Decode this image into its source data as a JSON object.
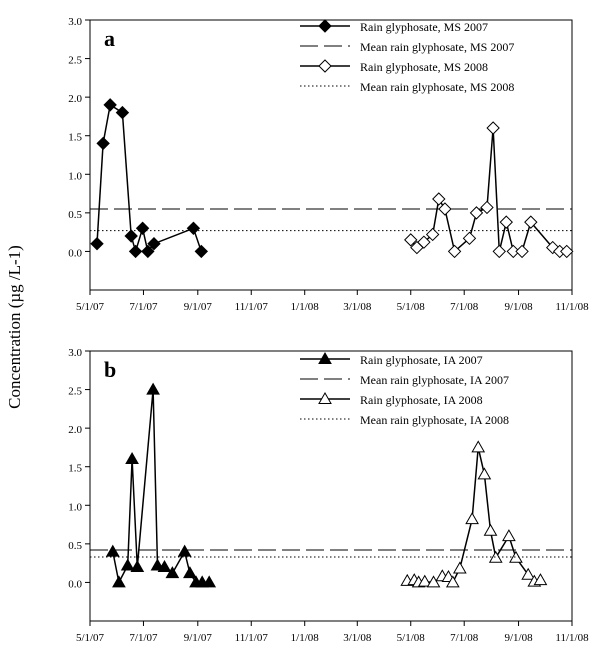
{
  "ylabel": "Concentration (µg /L-1)",
  "chart_data": [
    {
      "type": "line",
      "panel_label": "a",
      "xlabel": "",
      "ylabel": "Concentration (µg /L-1)",
      "ylim": [
        -0.5,
        3.0
      ],
      "yticks": [
        "0.0",
        "0.5",
        "1.0",
        "1.5",
        "2.0",
        "2.5",
        "3.0"
      ],
      "xlim": [
        "2007-05-01",
        "2008-11-01"
      ],
      "xticks": [
        "5/1/07",
        "7/1/07",
        "9/1/07",
        "11/1/07",
        "1/1/08",
        "3/1/08",
        "5/1/08",
        "7/1/08",
        "9/1/08",
        "11/1/08"
      ],
      "grid": false,
      "legend_position": "top-right",
      "series": [
        {
          "name": "Rain glyphosate, MS 2007",
          "style": "line-filled-diamond",
          "points": [
            [
              "2007-05-09",
              0.1
            ],
            [
              "2007-05-16",
              1.4
            ],
            [
              "2007-05-24",
              1.9
            ],
            [
              "2007-06-07",
              1.8
            ],
            [
              "2007-06-17",
              0.2
            ],
            [
              "2007-06-22",
              0.0
            ],
            [
              "2007-06-30",
              0.3
            ],
            [
              "2007-07-06",
              0.0
            ],
            [
              "2007-07-13",
              0.1
            ],
            [
              "2007-08-27",
              0.3
            ],
            [
              "2007-09-05",
              0.0
            ]
          ]
        },
        {
          "name": "Mean rain glyphosate, MS 2007",
          "style": "long-dash",
          "value": 0.55
        },
        {
          "name": "Rain glyphosate, MS 2008",
          "style": "line-open-diamond",
          "points": [
            [
              "2008-05-01",
              0.15
            ],
            [
              "2008-05-08",
              0.05
            ],
            [
              "2008-05-16",
              0.12
            ],
            [
              "2008-05-26",
              0.22
            ],
            [
              "2008-06-02",
              0.68
            ],
            [
              "2008-06-09",
              0.55
            ],
            [
              "2008-06-20",
              0.0
            ],
            [
              "2008-07-07",
              0.17
            ],
            [
              "2008-07-15",
              0.5
            ],
            [
              "2008-07-27",
              0.57
            ],
            [
              "2008-08-03",
              1.6
            ],
            [
              "2008-08-10",
              0.0
            ],
            [
              "2008-08-18",
              0.38
            ],
            [
              "2008-08-26",
              0.0
            ],
            [
              "2008-09-05",
              0.0
            ],
            [
              "2008-09-15",
              0.38
            ],
            [
              "2008-10-10",
              0.05
            ],
            [
              "2008-10-18",
              0.0
            ],
            [
              "2008-10-26",
              0.0
            ]
          ]
        },
        {
          "name": "Mean rain glyphosate, MS 2008",
          "style": "dotted",
          "value": 0.27
        }
      ]
    },
    {
      "type": "line",
      "panel_label": "b",
      "xlabel": "",
      "ylabel": "Concentration (µg /L-1)",
      "ylim": [
        -0.5,
        3.0
      ],
      "yticks": [
        "0.0",
        "0.5",
        "1.0",
        "1.5",
        "2.0",
        "2.5",
        "3.0"
      ],
      "xlim": [
        "2007-05-01",
        "2008-11-01"
      ],
      "xticks": [
        "5/1/07",
        "7/1/07",
        "9/1/07",
        "11/1/07",
        "1/1/08",
        "3/1/08",
        "5/1/08",
        "7/1/08",
        "9/1/08",
        "11/1/08"
      ],
      "grid": false,
      "legend_position": "top-right",
      "series": [
        {
          "name": "Rain glyphosate, IA 2007",
          "style": "line-filled-triangle",
          "points": [
            [
              "2007-05-27",
              0.4
            ],
            [
              "2007-06-03",
              0.0
            ],
            [
              "2007-06-13",
              0.22
            ],
            [
              "2007-06-18",
              1.6
            ],
            [
              "2007-06-24",
              0.2
            ],
            [
              "2007-07-12",
              2.5
            ],
            [
              "2007-07-17",
              0.22
            ],
            [
              "2007-07-25",
              0.2
            ],
            [
              "2007-08-03",
              0.12
            ],
            [
              "2007-08-17",
              0.4
            ],
            [
              "2007-08-23",
              0.12
            ],
            [
              "2007-08-30",
              0.0
            ],
            [
              "2007-09-06",
              0.0
            ],
            [
              "2007-09-14",
              0.0
            ]
          ]
        },
        {
          "name": "Mean rain glyphosate, IA 2007",
          "style": "long-dash",
          "value": 0.42
        },
        {
          "name": "Rain glyphosate, IA 2008",
          "style": "line-open-triangle",
          "points": [
            [
              "2008-04-27",
              0.02
            ],
            [
              "2008-05-05",
              0.03
            ],
            [
              "2008-05-10",
              0.0
            ],
            [
              "2008-05-17",
              0.01
            ],
            [
              "2008-05-27",
              0.0
            ],
            [
              "2008-06-06",
              0.08
            ],
            [
              "2008-06-13",
              0.07
            ],
            [
              "2008-06-18",
              0.0
            ],
            [
              "2008-06-26",
              0.18
            ],
            [
              "2008-07-10",
              0.82
            ],
            [
              "2008-07-17",
              1.75
            ],
            [
              "2008-07-24",
              1.4
            ],
            [
              "2008-07-31",
              0.67
            ],
            [
              "2008-08-06",
              0.32
            ],
            [
              "2008-08-21",
              0.6
            ],
            [
              "2008-08-29",
              0.32
            ],
            [
              "2008-09-12",
              0.1
            ],
            [
              "2008-09-19",
              0.01
            ],
            [
              "2008-09-26",
              0.03
            ]
          ]
        },
        {
          "name": "Mean rain glyphosate, IA 2008",
          "style": "dotted",
          "value": 0.33
        }
      ]
    }
  ]
}
